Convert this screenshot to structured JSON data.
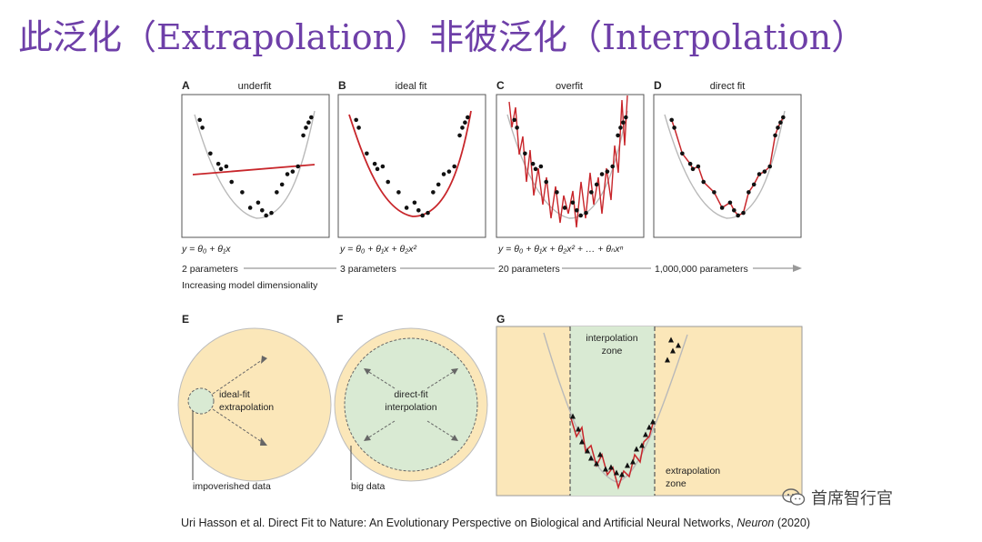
{
  "slide_title": "此泛化（Extrapolation）非彼泛化（Interpolation）",
  "panels": [
    {
      "letter": "A",
      "title": "underfit",
      "equation": "y = θ₀ + θ₁x"
    },
    {
      "letter": "B",
      "title": "ideal fit",
      "equation": "y = θ₀ + θ₁x + θ₂x²"
    },
    {
      "letter": "C",
      "title": "overfit",
      "equation": "y = θ₀ + θ₁x + θ₂x² + … + θₙxⁿ"
    },
    {
      "letter": "D",
      "title": "direct fit",
      "equation": ""
    }
  ],
  "parameters": [
    "2 parameters",
    "3 parameters",
    "20 parameters",
    "1,000,000 parameters"
  ],
  "dimensionality_label": "Increasing model dimensionality",
  "lower_panels": {
    "E": {
      "letter": "E",
      "inner_label_1": "ideal-fit",
      "inner_label_2": "extrapolation",
      "caption": "impoverished data"
    },
    "F": {
      "letter": "F",
      "inner_label_1": "direct-fit",
      "inner_label_2": "interpolation",
      "caption": "big data"
    },
    "G": {
      "letter": "G",
      "zone_top_1": "interpolation",
      "zone_top_2": "zone",
      "zone_bottom_1": "extrapolation",
      "zone_bottom_2": "zone"
    }
  },
  "citation": {
    "text": "Uri Hasson et al. Direct Fit to Nature: An Evolutionary Perspective on Biological and Artificial Neural Networks, ",
    "journal": "Neuron",
    "year": " (2020)"
  },
  "watermark": "首席智行官",
  "colors": {
    "title": "#6e3fa8",
    "fit_line": "#c8262b",
    "true_curve": "#b9b9b9",
    "zone_yellow": "#fbe7b9",
    "zone_green": "#d9ead3"
  }
}
